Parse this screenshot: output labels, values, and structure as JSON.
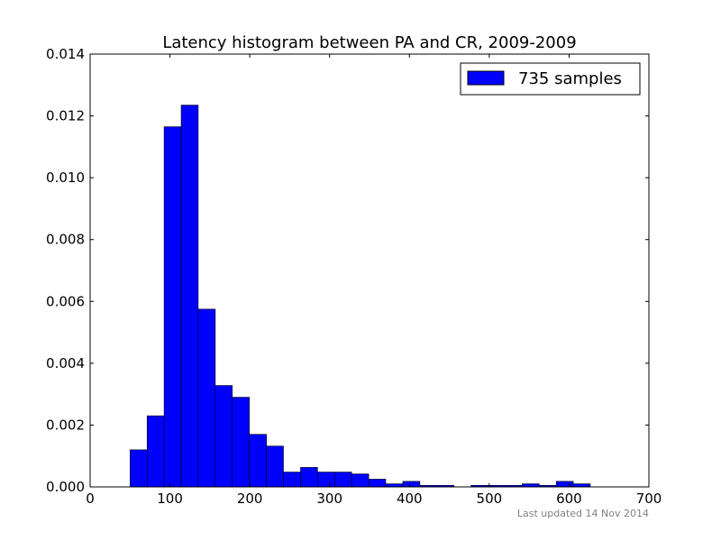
{
  "chart_data": {
    "type": "bar",
    "title": "Latency histogram between PA and CR, 2009-2009",
    "xlabel": "",
    "ylabel": "",
    "xlim": [
      0,
      700
    ],
    "ylim": [
      0,
      0.014
    ],
    "x_ticks": [
      0,
      100,
      200,
      300,
      400,
      500,
      600,
      700
    ],
    "x_tick_labels": [
      "0",
      "100",
      "200",
      "300",
      "400",
      "500",
      "600",
      "700"
    ],
    "y_ticks": [
      0.0,
      0.002,
      0.004,
      0.006,
      0.008,
      0.01,
      0.012,
      0.014
    ],
    "y_tick_labels": [
      "0.000",
      "0.002",
      "0.004",
      "0.006",
      "0.008",
      "0.010",
      "0.012",
      "0.014"
    ],
    "grid": false,
    "legend_position": "top-right",
    "bar_color": "#0000ff",
    "edge_color": "#000000",
    "series": [
      {
        "name": "735 samples",
        "bins": [
          {
            "x0": 50.0,
            "x1": 71.4,
            "value": 0.0012
          },
          {
            "x0": 71.4,
            "x1": 92.7,
            "value": 0.0023
          },
          {
            "x0": 92.7,
            "x1": 114.1,
            "value": 0.01165
          },
          {
            "x0": 114.1,
            "x1": 135.4,
            "value": 0.01235
          },
          {
            "x0": 135.4,
            "x1": 156.8,
            "value": 0.00575
          },
          {
            "x0": 156.8,
            "x1": 178.1,
            "value": 0.00328
          },
          {
            "x0": 178.1,
            "x1": 199.5,
            "value": 0.0029
          },
          {
            "x0": 199.5,
            "x1": 220.9,
            "value": 0.0017
          },
          {
            "x0": 220.9,
            "x1": 242.2,
            "value": 0.00132
          },
          {
            "x0": 242.2,
            "x1": 263.6,
            "value": 0.00048
          },
          {
            "x0": 263.6,
            "x1": 284.9,
            "value": 0.00063
          },
          {
            "x0": 284.9,
            "x1": 306.3,
            "value": 0.00048
          },
          {
            "x0": 306.3,
            "x1": 327.6,
            "value": 0.00048
          },
          {
            "x0": 327.6,
            "x1": 349.0,
            "value": 0.00042
          },
          {
            "x0": 349.0,
            "x1": 370.3,
            "value": 0.00025
          },
          {
            "x0": 370.3,
            "x1": 391.7,
            "value": 0.0001
          },
          {
            "x0": 391.7,
            "x1": 413.1,
            "value": 0.00018
          },
          {
            "x0": 413.1,
            "x1": 434.4,
            "value": 5e-05
          },
          {
            "x0": 434.4,
            "x1": 455.8,
            "value": 5e-05
          },
          {
            "x0": 455.8,
            "x1": 477.1,
            "value": 0.0
          },
          {
            "x0": 477.1,
            "x1": 498.5,
            "value": 5e-05
          },
          {
            "x0": 498.5,
            "x1": 519.8,
            "value": 5e-05
          },
          {
            "x0": 519.8,
            "x1": 541.2,
            "value": 5e-05
          },
          {
            "x0": 541.2,
            "x1": 562.6,
            "value": 0.0001
          },
          {
            "x0": 562.6,
            "x1": 583.9,
            "value": 5e-05
          },
          {
            "x0": 583.9,
            "x1": 605.3,
            "value": 0.00018
          },
          {
            "x0": 605.3,
            "x1": 626.6,
            "value": 0.0001
          }
        ]
      }
    ]
  },
  "footnote": "Last updated 14 Nov 2014"
}
